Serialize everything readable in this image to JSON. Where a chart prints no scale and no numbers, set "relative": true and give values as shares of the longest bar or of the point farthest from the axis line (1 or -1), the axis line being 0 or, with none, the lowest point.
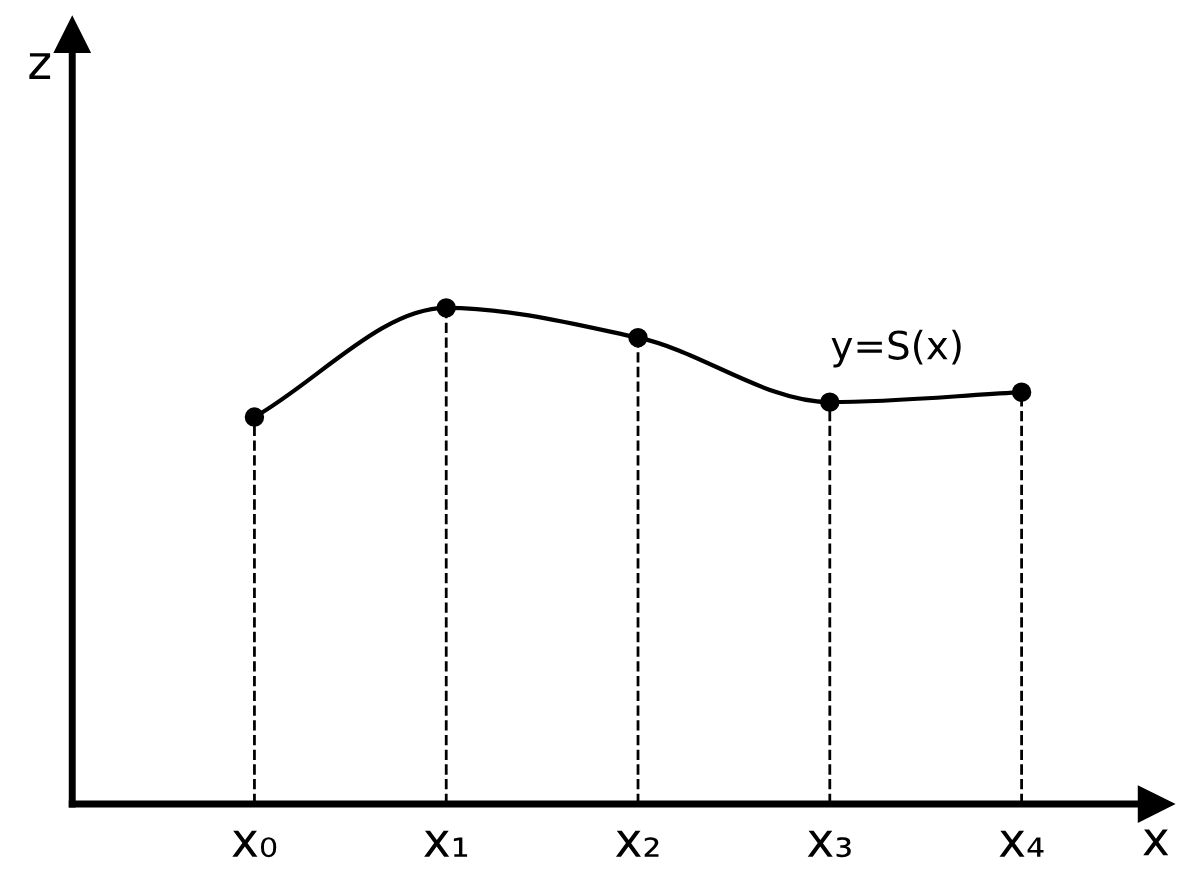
{
  "chart_data": {
    "type": "line",
    "relative": true,
    "xlabel": "x",
    "ylabel": "z",
    "categories": [
      "x₀",
      "x₁",
      "x₂",
      "x₃",
      "x₄"
    ],
    "series": [
      {
        "name": "y=S(x)",
        "color": "#000000",
        "values": [
          0.78,
          1,
          0.94,
          0.81,
          0.83
        ]
      }
    ],
    "marker": "circle",
    "line_style": "solid",
    "grid": "x",
    "legend": false
  }
}
